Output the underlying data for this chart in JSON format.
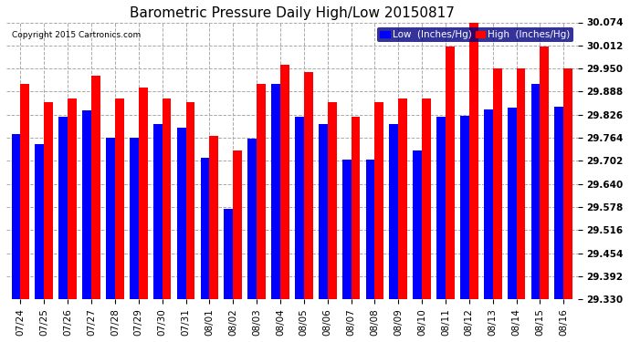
{
  "title": "Barometric Pressure Daily High/Low 20150817",
  "copyright": "Copyright 2015 Cartronics.com",
  "legend_low": "Low  (Inches/Hg)",
  "legend_high": "High  (Inches/Hg)",
  "dates": [
    "07/24",
    "07/25",
    "07/26",
    "07/27",
    "07/28",
    "07/29",
    "07/30",
    "07/31",
    "08/01",
    "08/02",
    "08/03",
    "08/04",
    "08/05",
    "08/06",
    "08/07",
    "08/08",
    "08/09",
    "08/10",
    "08/11",
    "08/12",
    "08/13",
    "08/14",
    "08/15",
    "08/16"
  ],
  "low_values": [
    29.774,
    29.748,
    29.82,
    29.838,
    29.764,
    29.764,
    29.8,
    29.792,
    29.71,
    29.574,
    29.762,
    29.91,
    29.82,
    29.8,
    29.706,
    29.706,
    29.802,
    29.73,
    29.82,
    29.822,
    29.84,
    29.844,
    29.91,
    29.848
  ],
  "high_values": [
    29.91,
    29.86,
    29.87,
    29.93,
    29.87,
    29.9,
    29.87,
    29.86,
    29.77,
    29.73,
    29.91,
    29.96,
    29.94,
    29.86,
    29.82,
    29.86,
    29.87,
    29.87,
    30.008,
    30.074,
    29.95,
    29.95,
    30.008,
    29.95
  ],
  "ylim_min": 29.33,
  "ylim_max": 30.074,
  "yticks": [
    29.33,
    29.392,
    29.454,
    29.516,
    29.578,
    29.64,
    29.702,
    29.764,
    29.826,
    29.888,
    29.95,
    30.012,
    30.074
  ],
  "bar_width": 0.38,
  "low_color": "#0000ff",
  "high_color": "#ff0000",
  "bg_color": "#ffffff",
  "grid_color": "#aaaaaa",
  "title_fontsize": 11,
  "tick_fontsize": 7.5,
  "legend_fontsize": 7.5
}
